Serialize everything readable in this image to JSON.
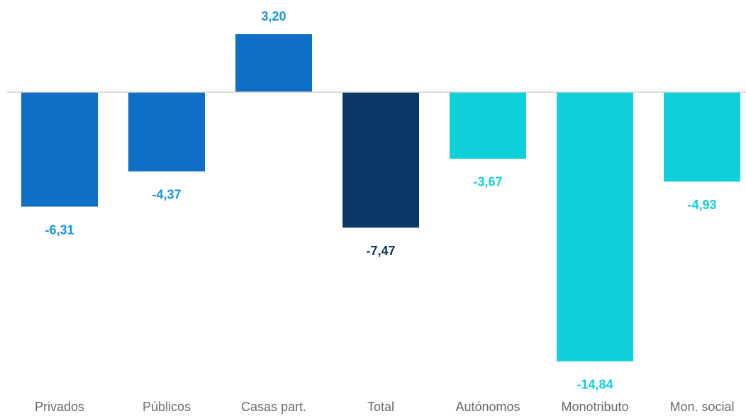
{
  "chart_data": {
    "type": "bar",
    "categories": [
      "Privados",
      "Públicos",
      "Casas part.",
      "Total",
      "Autónomos",
      "Monotributo",
      "Mon. social"
    ],
    "values": [
      -6.31,
      -4.37,
      3.2,
      -7.47,
      -3.67,
      -14.84,
      -4.93
    ],
    "value_labels": [
      "-6,31",
      "-4,37",
      "3,20",
      "-7,47",
      "-3,67",
      "-14,84",
      "-4,93"
    ],
    "colors": [
      "#0f6fc6",
      "#0f6fc6",
      "#0f6fc6",
      "#0a3763",
      "#0fd0d9",
      "#0fd0d9",
      "#0fd0d9"
    ],
    "label_colors": [
      "#1596d6",
      "#1596d6",
      "#1596d6",
      "#0a3763",
      "#0fd0d9",
      "#0fd0d9",
      "#0fd0d9"
    ],
    "ylim": [
      -16,
      4
    ]
  }
}
